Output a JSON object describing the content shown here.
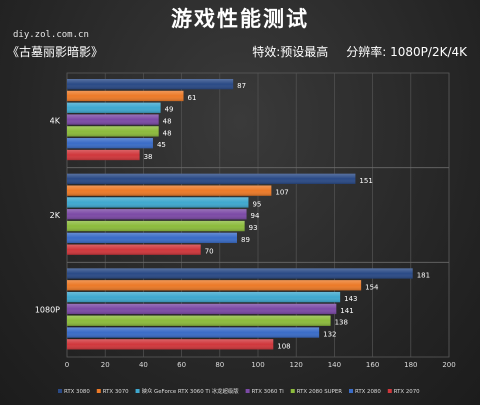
{
  "header": {
    "title": "游戏性能测试",
    "source": "diy.zol.com.cn",
    "game": "《古墓丽影暗影》",
    "settings": "特效:预设最高",
    "resolution": "分辨率: 1080P/2K/4K"
  },
  "colors": {
    "RTX 3080": "#2a4a86",
    "RTX 3070": "#ec7a28",
    "映众 GeForce RTX 3060 Ti 冰龙超级版": "#3fa8cf",
    "RTX 3060 Ti": "#7c4aa6",
    "RTX 2080 SUPER": "#8cbb3c",
    "RTX 2080": "#3a6cc7",
    "RTX 2070": "#d0373c"
  },
  "chart_data": {
    "type": "bar",
    "orientation": "horizontal",
    "categories": [
      "4K",
      "2K",
      "1080P"
    ],
    "series": [
      {
        "name": "RTX 3080",
        "values": [
          87,
          151,
          181
        ]
      },
      {
        "name": "RTX 3070",
        "values": [
          61,
          107,
          154
        ]
      },
      {
        "name": "映众 GeForce RTX 3060 Ti 冰龙超级版",
        "values": [
          49,
          95,
          143
        ]
      },
      {
        "name": "RTX 3060 Ti",
        "values": [
          48,
          94,
          141
        ]
      },
      {
        "name": "RTX 2080 SUPER",
        "values": [
          48,
          93,
          138
        ]
      },
      {
        "name": "RTX 2080",
        "values": [
          45,
          89,
          132
        ]
      },
      {
        "name": "RTX 2070",
        "values": [
          38,
          70,
          108
        ]
      }
    ],
    "xlim": [
      0,
      200
    ],
    "xticks": [
      0,
      20,
      40,
      60,
      80,
      100,
      120,
      140,
      160,
      180,
      200
    ],
    "grid": true,
    "legend": "bottom"
  }
}
